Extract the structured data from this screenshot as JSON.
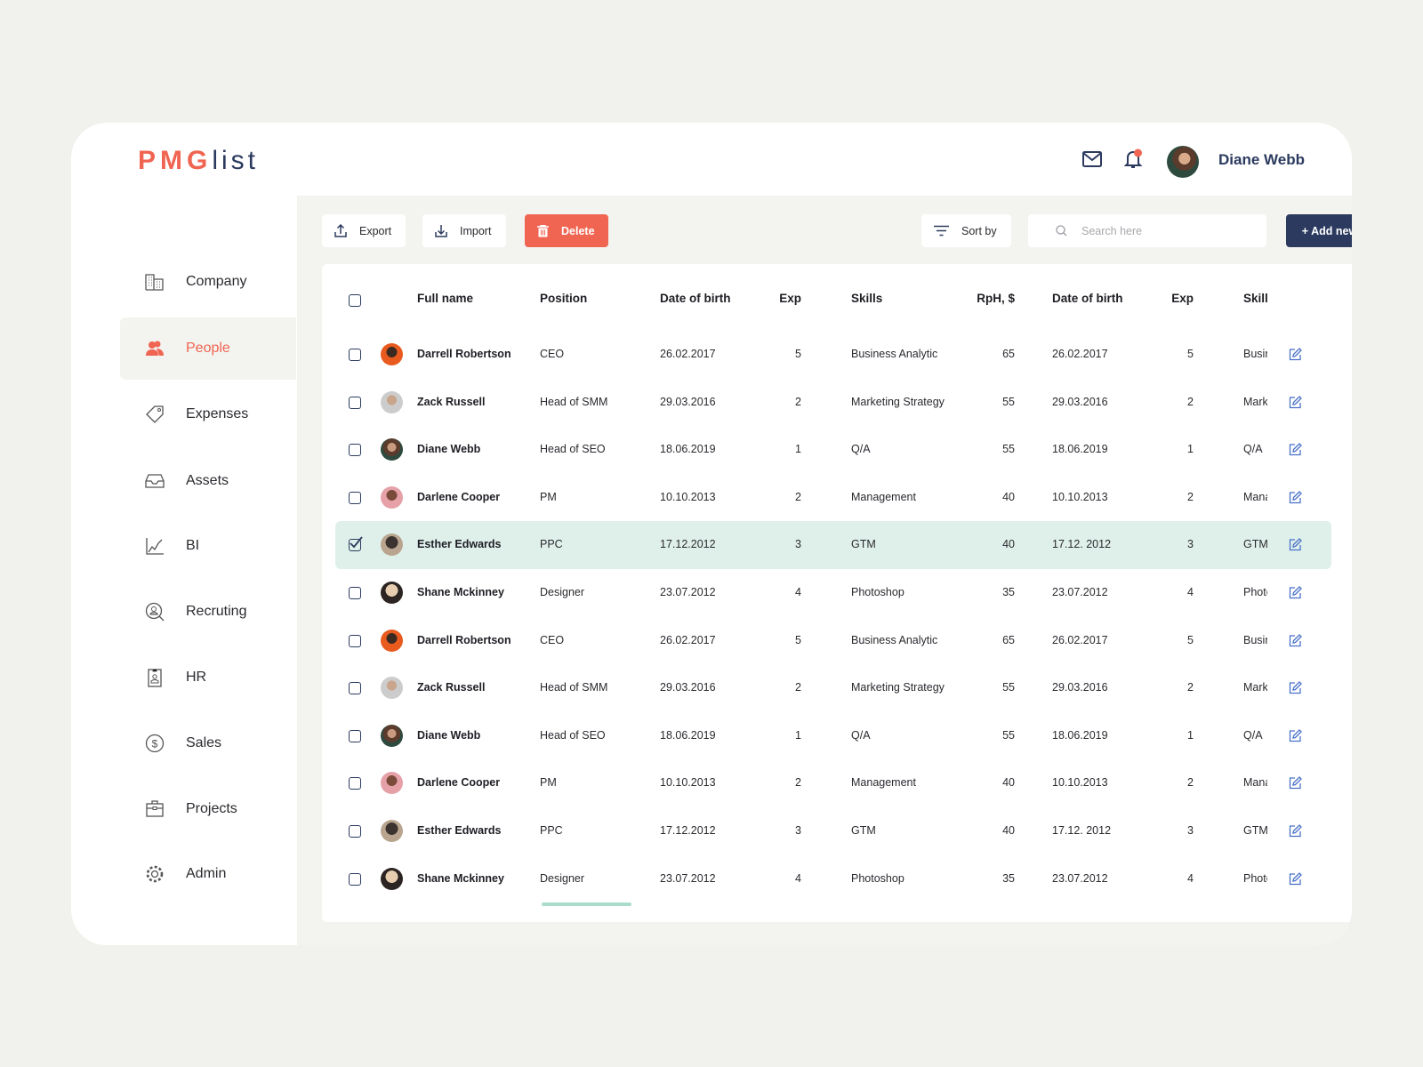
{
  "logo": {
    "bold": "PMG",
    "light": "list"
  },
  "header": {
    "user_name": "Diane Webb",
    "notification_dot_color": "#f06552"
  },
  "sidebar": {
    "items": [
      {
        "label": "Company",
        "icon": "building-icon"
      },
      {
        "label": "People",
        "icon": "people-icon",
        "active": true
      },
      {
        "label": "Expenses",
        "icon": "tag-icon"
      },
      {
        "label": "Assets",
        "icon": "inbox-icon"
      },
      {
        "label": "BI",
        "icon": "chart-icon"
      },
      {
        "label": "Recruting",
        "icon": "search-person-icon"
      },
      {
        "label": "HR",
        "icon": "badge-icon"
      },
      {
        "label": "Sales",
        "icon": "dollar-icon"
      },
      {
        "label": "Projects",
        "icon": "briefcase-icon"
      },
      {
        "label": "Admin",
        "icon": "gear-icon"
      }
    ]
  },
  "toolbar": {
    "export": "Export",
    "import": "Import",
    "delete": "Delete",
    "sort": "Sort by",
    "search_placeholder": "Search here",
    "add_new": "+ Add new"
  },
  "colors": {
    "accent": "#f06552",
    "navy": "#2b3a5e",
    "selected_row": "#dff0ea"
  },
  "table": {
    "columns": [
      "Full name",
      "Position",
      "Date of birth",
      "Exp",
      "Skills",
      "RpH, $",
      "Date of birth",
      "Exp",
      "Skill"
    ],
    "rows": [
      {
        "name": "Darrell Robertson",
        "position": "CEO",
        "dob": "26.02.2017",
        "exp": "5",
        "skills": "Business Analytic",
        "rph": "65",
        "dob2": "26.02.2017",
        "exp2": "5",
        "skills2": "Business Analytic",
        "checked": false
      },
      {
        "name": "Zack Russell",
        "position": "Head of SMM",
        "dob": "29.03.2016",
        "exp": "2",
        "skills": "Marketing Strategy",
        "rph": "55",
        "dob2": "29.03.2016",
        "exp2": "2",
        "skills2": "Marketing Strategy",
        "checked": false
      },
      {
        "name": "Diane Webb",
        "position": "Head of SEO",
        "dob": "18.06.2019",
        "exp": "1",
        "skills": "Q/A",
        "rph": "55",
        "dob2": "18.06.2019",
        "exp2": "1",
        "skills2": "Q/A",
        "checked": false
      },
      {
        "name": "Darlene Cooper",
        "position": "PM",
        "dob": "10.10.2013",
        "exp": "2",
        "skills": "Management",
        "rph": "40",
        "dob2": "10.10.2013",
        "exp2": "2",
        "skills2": "Management",
        "checked": false
      },
      {
        "name": "Esther Edwards",
        "position": "PPC",
        "dob": "17.12.2012",
        "exp": "3",
        "skills": "GTM",
        "rph": "40",
        "dob2": "17.12. 2012",
        "exp2": "3",
        "skills2": "GTM",
        "checked": true
      },
      {
        "name": "Shane Mckinney",
        "position": "Designer",
        "dob": "23.07.2012",
        "exp": "4",
        "skills": "Photoshop",
        "rph": "35",
        "dob2": "23.07.2012",
        "exp2": "4",
        "skills2": "Photoshop",
        "checked": false
      },
      {
        "name": "Darrell Robertson",
        "position": "CEO",
        "dob": "26.02.2017",
        "exp": "5",
        "skills": "Business Analytic",
        "rph": "65",
        "dob2": "26.02.2017",
        "exp2": "5",
        "skills2": "Business Analytic",
        "checked": false
      },
      {
        "name": "Zack Russell",
        "position": "Head of SMM",
        "dob": "29.03.2016",
        "exp": "2",
        "skills": "Marketing Strategy",
        "rph": "55",
        "dob2": "29.03.2016",
        "exp2": "2",
        "skills2": "Marketing Strategy",
        "checked": false
      },
      {
        "name": "Diane Webb",
        "position": "Head of SEO",
        "dob": "18.06.2019",
        "exp": "1",
        "skills": "Q/A",
        "rph": "55",
        "dob2": "18.06.2019",
        "exp2": "1",
        "skills2": "Q/A",
        "checked": false
      },
      {
        "name": "Darlene Cooper",
        "position": "PM",
        "dob": "10.10.2013",
        "exp": "2",
        "skills": "Management",
        "rph": "40",
        "dob2": "10.10.2013",
        "exp2": "2",
        "skills2": "Management",
        "checked": false
      },
      {
        "name": "Esther Edwards",
        "position": "PPC",
        "dob": "17.12.2012",
        "exp": "3",
        "skills": "GTM",
        "rph": "40",
        "dob2": "17.12. 2012",
        "exp2": "3",
        "skills2": "GTM",
        "checked": false
      },
      {
        "name": "Shane Mckinney",
        "position": "Designer",
        "dob": "23.07.2012",
        "exp": "4",
        "skills": "Photoshop",
        "rph": "35",
        "dob2": "23.07.2012",
        "exp2": "4",
        "skills2": "Photoshop",
        "checked": false
      }
    ]
  }
}
